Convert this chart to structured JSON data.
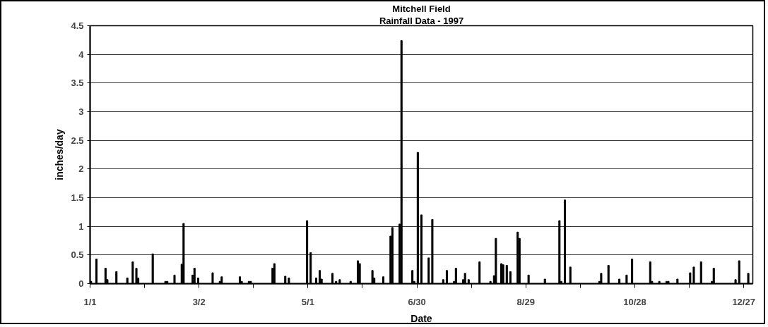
{
  "chart_data": {
    "type": "bar",
    "title": "Mitchell Field",
    "subtitle": "Rainfall Data - 1997",
    "xlabel": "Date",
    "ylabel": "inches/day",
    "x": [
      "1997-01-01",
      "1997-01-04",
      "1997-01-09",
      "1997-01-10",
      "1997-01-15",
      "1997-01-21",
      "1997-01-24",
      "1997-01-26",
      "1997-01-27",
      "1997-02-04",
      "1997-02-11",
      "1997-02-12",
      "1997-02-16",
      "1997-02-20",
      "1997-02-21",
      "1997-02-26",
      "1997-02-27",
      "1997-03-01",
      "1997-03-09",
      "1997-03-13",
      "1997-03-14",
      "1997-03-24",
      "1997-03-25",
      "1997-03-29",
      "1997-03-30",
      "1997-04-11",
      "1997-04-12",
      "1997-04-18",
      "1997-04-20",
      "1997-04-30",
      "1997-05-02",
      "1997-05-05",
      "1997-05-07",
      "1997-05-08",
      "1997-05-14",
      "1997-05-16",
      "1997-05-18",
      "1997-05-24",
      "1997-05-28",
      "1997-05-29",
      "1997-06-05",
      "1997-06-06",
      "1997-06-11",
      "1997-06-15",
      "1997-06-16",
      "1997-06-20",
      "1997-06-21",
      "1997-06-27",
      "1997-06-28",
      "1997-06-30",
      "1997-07-02",
      "1997-07-06",
      "1997-07-08",
      "1997-07-14",
      "1997-07-16",
      "1997-07-20",
      "1997-07-21",
      "1997-07-25",
      "1997-07-26",
      "1997-07-28",
      "1997-08-03",
      "1997-08-09",
      "1997-08-11",
      "1997-08-12",
      "1997-08-15",
      "1997-08-16",
      "1997-08-18",
      "1997-08-20",
      "1997-08-24",
      "1997-08-25",
      "1997-08-30",
      "1997-09-08",
      "1997-09-16",
      "1997-09-17",
      "1997-09-19",
      "1997-09-22",
      "1997-10-08",
      "1997-10-09",
      "1997-10-13",
      "1997-10-19",
      "1997-10-23",
      "1997-10-26",
      "1997-11-05",
      "1997-11-06",
      "1997-11-10",
      "1997-11-14",
      "1997-11-15",
      "1997-11-20",
      "1997-11-27",
      "1997-11-29",
      "1997-12-03",
      "1997-12-09",
      "1997-12-10",
      "1997-12-22",
      "1997-12-24",
      "1997-12-29"
    ],
    "values": [
      0.04,
      0.43,
      0.27,
      0.07,
      0.21,
      0.1,
      0.38,
      0.27,
      0.1,
      0.52,
      0.04,
      0.04,
      0.15,
      0.34,
      1.05,
      0.15,
      0.27,
      0.1,
      0.19,
      0.04,
      0.12,
      0.12,
      0.04,
      0.04,
      0.04,
      0.27,
      0.35,
      0.13,
      0.1,
      1.1,
      0.54,
      0.1,
      0.23,
      0.08,
      0.18,
      0.04,
      0.07,
      0.04,
      0.4,
      0.35,
      0.23,
      0.1,
      0.12,
      0.83,
      0.98,
      1.04,
      4.24,
      0.23,
      0.04,
      2.29,
      1.2,
      0.45,
      1.12,
      0.07,
      0.23,
      0.04,
      0.27,
      0.07,
      0.18,
      0.07,
      0.38,
      0.04,
      0.14,
      0.79,
      0.35,
      0.33,
      0.32,
      0.21,
      0.9,
      0.79,
      0.15,
      0.08,
      1.1,
      0.04,
      1.46,
      0.29,
      0.04,
      0.18,
      0.32,
      0.08,
      0.15,
      0.43,
      0.38,
      0.04,
      0.04,
      0.04,
      0.04,
      0.08,
      0.19,
      0.29,
      0.38,
      0.04,
      0.27,
      0.07,
      0.4,
      0.18
    ],
    "color": "#000000",
    "xlim": [
      "1997-01-01",
      "1998-01-01"
    ],
    "xticks": [
      {
        "value": "1997-01-01",
        "label": "1/1"
      },
      {
        "value": "1997-01-31",
        "label": null
      },
      {
        "value": "1997-03-02",
        "label": "3/2"
      },
      {
        "value": "1997-04-01",
        "label": null
      },
      {
        "value": "1997-05-01",
        "label": "5/1"
      },
      {
        "value": "1997-05-31",
        "label": null
      },
      {
        "value": "1997-06-30",
        "label": "6/30"
      },
      {
        "value": "1997-07-30",
        "label": null
      },
      {
        "value": "1997-08-29",
        "label": "8/29"
      },
      {
        "value": "1997-09-28",
        "label": null
      },
      {
        "value": "1997-10-28",
        "label": "10/28"
      },
      {
        "value": "1997-11-27",
        "label": null
      },
      {
        "value": "1997-12-27",
        "label": "12/27"
      }
    ],
    "ylim": [
      0,
      4.5
    ],
    "yticks": [
      0,
      0.5,
      1,
      1.5,
      2,
      2.5,
      3,
      3.5,
      4,
      4.5
    ],
    "grid": "y"
  }
}
